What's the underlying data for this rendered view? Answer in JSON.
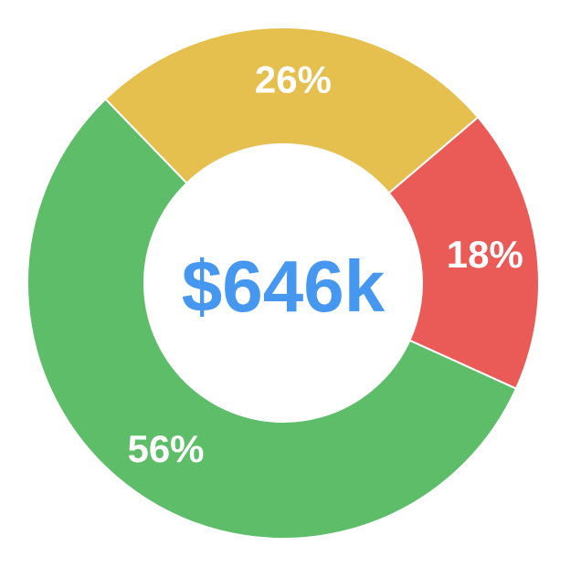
{
  "chart_data": {
    "type": "pie",
    "variant": "donut",
    "center_text": "$646k",
    "slices": [
      {
        "value": 26,
        "label": "26%",
        "color": "#e5c04f"
      },
      {
        "value": 18,
        "label": "18%",
        "color": "#ea5b57"
      },
      {
        "value": 56,
        "label": "56%",
        "color": "#5dbd68"
      }
    ],
    "center_color": "#4597ef",
    "legend": false
  }
}
